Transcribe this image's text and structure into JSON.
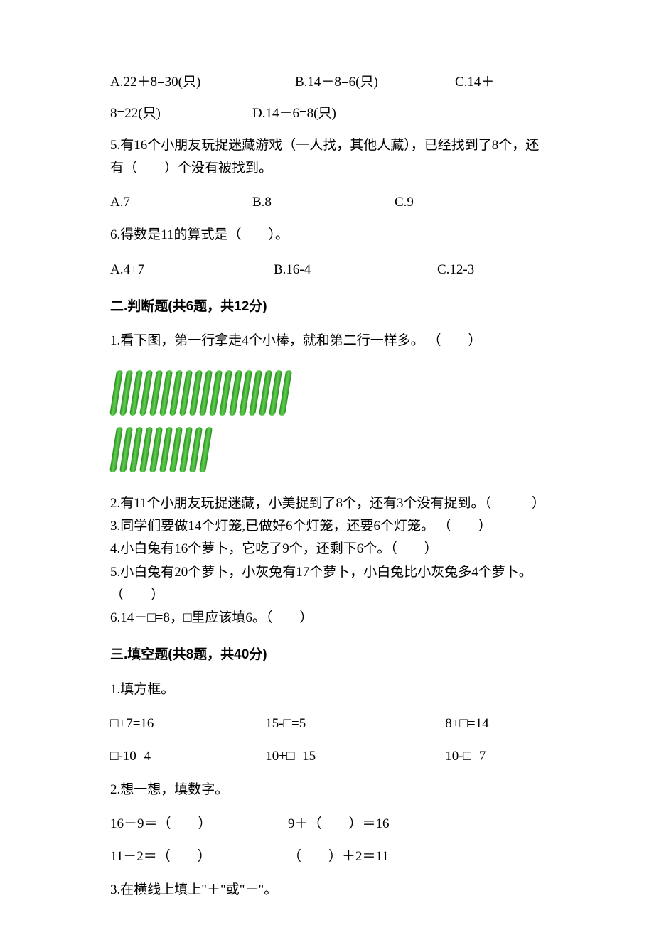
{
  "q4": {
    "optA": "A.22＋8=30(只)",
    "optB": "B.14－8=6(只)",
    "optC_part1": "C.14＋",
    "optC_part2": "8=22(只)",
    "optD": "D.14－6=8(只)"
  },
  "q5": {
    "text": "5.有16个小朋友玩捉迷藏游戏（一人找，其他人藏），已经找到了8个，还有（　　）个没有被找到。",
    "optA": "A.7",
    "optB": "B.8",
    "optC": "C.9"
  },
  "q6": {
    "text": "6.得数是11的算式是（　　）。",
    "optA": "A.4+7",
    "optB": "B.16-4",
    "optC": "C.12-3"
  },
  "section2": {
    "title": "二.判断题(共6题，共12分)",
    "q1": "1.看下图，第一行拿走4个小棒，就和第二行一样多。 （　　）",
    "sticks": {
      "row1": 18,
      "row2": 10
    },
    "q2": "2.有11个小朋友玩捉迷藏，小美捉到了8个，还有3个没有捉到。（　　　）",
    "q3": "3.同学们要做14个灯笼,已做好6个灯笼，还要6个灯笼。 （　　）",
    "q4": "4.小白兔有16个萝卜，它吃了9个，还剩下6个。（　　）",
    "q5": "5.小白兔有20个萝卜，小灰兔有17个萝卜，小白兔比小灰兔多4个萝卜。　　（　　）",
    "q6": "6.14－□=8，□里应该填6。（　　）"
  },
  "section3": {
    "title": "三.填空题(共8题，共40分)",
    "q1": {
      "text": "1.填方框。",
      "row1": {
        "a": "□+7=16",
        "b": "15-□=5",
        "c": "8+□=14"
      },
      "row2": {
        "a": "□-10=4",
        "b": "10+□=15",
        "c": "10-□=7"
      }
    },
    "q2": {
      "text": "2.想一想，填数字。",
      "row1": {
        "a": "16－9＝（　　）",
        "b": "9＋（　　）＝16"
      },
      "row2": {
        "a": "11－2＝（　　）",
        "b": "（　　）＋2＝11"
      }
    },
    "q3": {
      "text": "3.在横线上填上\"＋\"或\"－\"。"
    }
  },
  "colors": {
    "text": "#000000",
    "background": "#ffffff",
    "stick_dark": "#2a8c1f",
    "stick_light": "#5fd04f"
  }
}
